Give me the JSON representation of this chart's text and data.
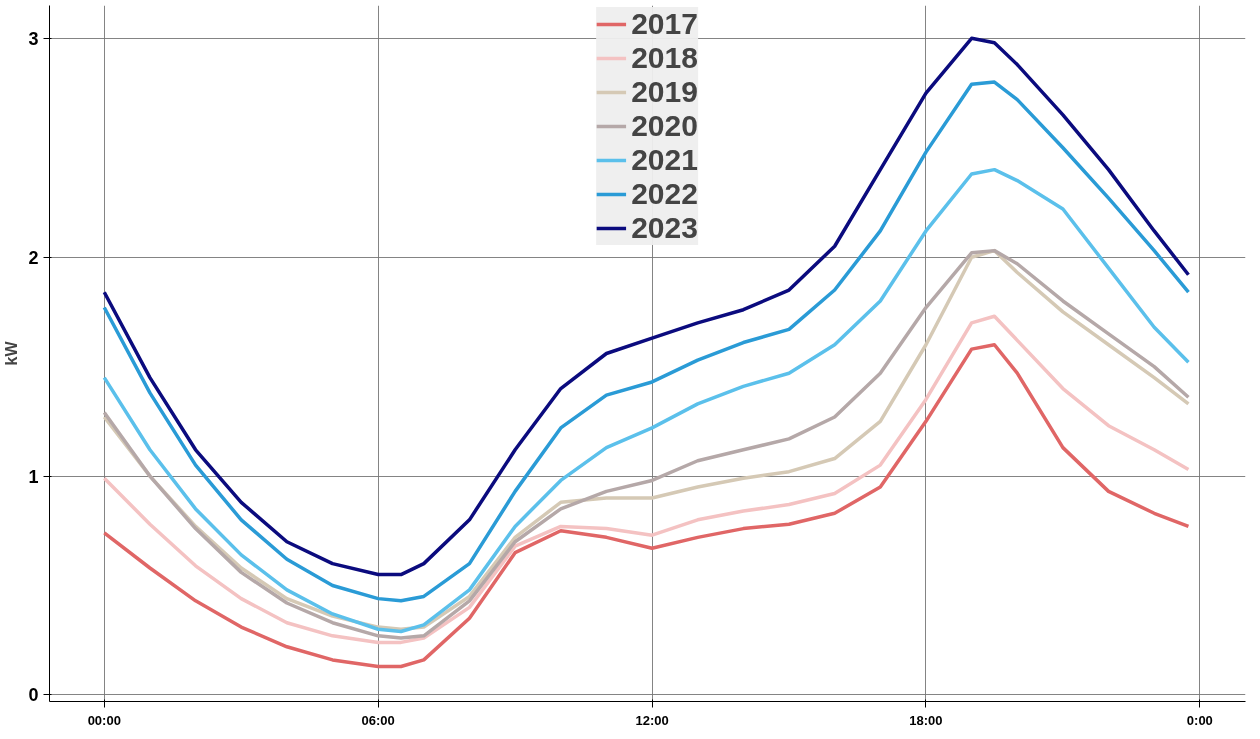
{
  "chart_data": {
    "type": "line",
    "ylabel": "kW",
    "x": [
      0,
      1,
      2,
      3,
      4,
      5,
      6,
      6.5,
      7,
      8,
      9,
      10,
      11,
      12,
      13,
      14,
      15,
      16,
      17,
      18,
      19,
      19.5,
      20,
      21,
      22,
      23,
      23.75
    ],
    "series": [
      {
        "name": "2017",
        "color": "#e06666",
        "values": [
          0.74,
          0.58,
          0.43,
          0.31,
          0.22,
          0.16,
          0.13,
          0.13,
          0.16,
          0.35,
          0.65,
          0.75,
          0.72,
          0.67,
          0.72,
          0.76,
          0.78,
          0.83,
          0.95,
          1.25,
          1.58,
          1.6,
          1.47,
          1.13,
          0.93,
          0.83,
          0.77
        ]
      },
      {
        "name": "2018",
        "color": "#f4c2c2",
        "values": [
          0.99,
          0.78,
          0.59,
          0.44,
          0.33,
          0.27,
          0.24,
          0.24,
          0.26,
          0.4,
          0.68,
          0.77,
          0.76,
          0.73,
          0.8,
          0.84,
          0.87,
          0.92,
          1.05,
          1.35,
          1.7,
          1.73,
          1.62,
          1.4,
          1.23,
          1.12,
          1.03
        ]
      },
      {
        "name": "2019",
        "color": "#d5c9b5",
        "values": [
          1.27,
          1.0,
          0.77,
          0.58,
          0.44,
          0.36,
          0.31,
          0.3,
          0.31,
          0.45,
          0.72,
          0.88,
          0.9,
          0.9,
          0.95,
          0.99,
          1.02,
          1.08,
          1.25,
          1.6,
          2.0,
          2.03,
          1.93,
          1.75,
          1.6,
          1.45,
          1.33
        ]
      },
      {
        "name": "2020",
        "color": "#b5a8a8",
        "values": [
          1.29,
          1.0,
          0.76,
          0.56,
          0.42,
          0.33,
          0.27,
          0.26,
          0.27,
          0.43,
          0.7,
          0.85,
          0.93,
          0.98,
          1.07,
          1.12,
          1.17,
          1.27,
          1.47,
          1.77,
          2.02,
          2.03,
          1.97,
          1.8,
          1.65,
          1.5,
          1.36
        ]
      },
      {
        "name": "2021",
        "color": "#5bc0eb",
        "values": [
          1.45,
          1.12,
          0.85,
          0.64,
          0.48,
          0.37,
          0.3,
          0.29,
          0.32,
          0.48,
          0.77,
          0.98,
          1.13,
          1.22,
          1.33,
          1.41,
          1.47,
          1.6,
          1.8,
          2.12,
          2.38,
          2.4,
          2.35,
          2.22,
          1.95,
          1.68,
          1.52
        ]
      },
      {
        "name": "2022",
        "color": "#2a9bd6",
        "values": [
          1.77,
          1.38,
          1.05,
          0.8,
          0.62,
          0.5,
          0.44,
          0.43,
          0.45,
          0.6,
          0.93,
          1.22,
          1.37,
          1.43,
          1.53,
          1.61,
          1.67,
          1.85,
          2.12,
          2.48,
          2.79,
          2.8,
          2.72,
          2.5,
          2.27,
          2.03,
          1.84
        ]
      },
      {
        "name": "2023",
        "color": "#0b0b7e",
        "values": [
          1.84,
          1.45,
          1.12,
          0.88,
          0.7,
          0.6,
          0.55,
          0.55,
          0.6,
          0.8,
          1.12,
          1.4,
          1.56,
          1.63,
          1.7,
          1.76,
          1.85,
          2.05,
          2.4,
          2.75,
          3.0,
          2.98,
          2.88,
          2.65,
          2.4,
          2.12,
          1.92
        ]
      }
    ],
    "xlim": [
      -1.2,
      25
    ],
    "ylim": [
      -0.03,
      3.15
    ],
    "xticks": [
      {
        "value": 0,
        "label": "00:00"
      },
      {
        "value": 6,
        "label": "06:00"
      },
      {
        "value": 12,
        "label": "12:00"
      },
      {
        "value": 18,
        "label": "18:00"
      },
      {
        "value": 24,
        "label": "0:00"
      }
    ],
    "yticks": [
      0,
      1,
      2,
      3
    ],
    "grid": true,
    "legend": "top",
    "marker": "none",
    "line_style": "solid"
  }
}
